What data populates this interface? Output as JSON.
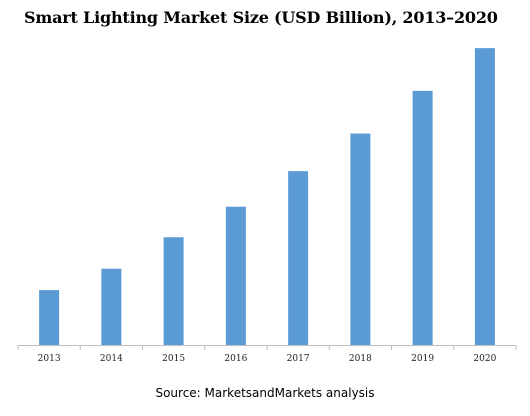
{
  "colors": {
    "bar": "#5b9bd5",
    "axis": "#bfbfbf"
  },
  "chart_data": {
    "type": "bar",
    "title": "Smart Lighting Market Size (USD Billion), 2013–2020",
    "categories": [
      "2013",
      "2014",
      "2015",
      "2016",
      "2017",
      "2018",
      "2019",
      "2020"
    ],
    "values": [
      5.4,
      7.5,
      10.6,
      13.6,
      17.1,
      20.8,
      25.0,
      29.2
    ],
    "ylim": [
      0,
      30
    ],
    "grid": false,
    "legend": "none"
  },
  "footer": {
    "source": "Source: MarketsandMarkets analysis"
  }
}
